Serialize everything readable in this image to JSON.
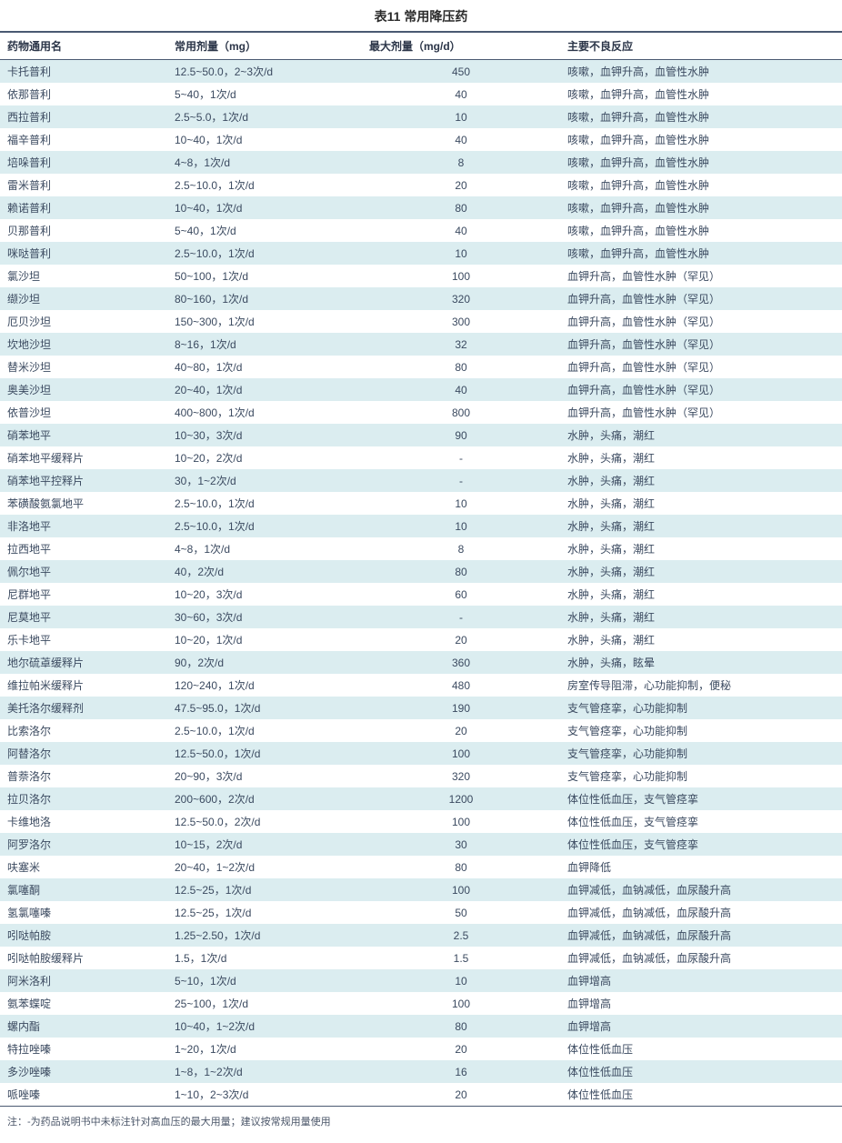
{
  "title": "表11  常用降压药",
  "columns": [
    "药物通用名",
    "常用剂量（mg）",
    "最大剂量（mg/d）",
    "主要不良反应"
  ],
  "rows": [
    [
      "卡托普利",
      "12.5~50.0，2~3次/d",
      "450",
      "咳嗽，血钾升高，血管性水肿"
    ],
    [
      "依那普利",
      "5~40，1次/d",
      "40",
      "咳嗽，血钾升高，血管性水肿"
    ],
    [
      "西拉普利",
      "2.5~5.0，1次/d",
      "10",
      "咳嗽，血钾升高，血管性水肿"
    ],
    [
      "福辛普利",
      "10~40，1次/d",
      "40",
      "咳嗽，血钾升高，血管性水肿"
    ],
    [
      "培哚普利",
      "4~8，1次/d",
      "8",
      "咳嗽，血钾升高，血管性水肿"
    ],
    [
      "雷米普利",
      "2.5~10.0，1次/d",
      "20",
      "咳嗽，血钾升高，血管性水肿"
    ],
    [
      "赖诺普利",
      "10~40，1次/d",
      "80",
      "咳嗽，血钾升高，血管性水肿"
    ],
    [
      "贝那普利",
      "5~40，1次/d",
      "40",
      "咳嗽，血钾升高，血管性水肿"
    ],
    [
      "咪哒普利",
      "2.5~10.0，1次/d",
      "10",
      "咳嗽，血钾升高，血管性水肿"
    ],
    [
      "氯沙坦",
      "50~100，1次/d",
      "100",
      "血钾升高，血管性水肿（罕见）"
    ],
    [
      "缬沙坦",
      "80~160，1次/d",
      "320",
      "血钾升高，血管性水肿（罕见）"
    ],
    [
      "厄贝沙坦",
      "150~300，1次/d",
      "300",
      "血钾升高，血管性水肿（罕见）"
    ],
    [
      "坎地沙坦",
      "8~16，1次/d",
      "32",
      "血钾升高，血管性水肿（罕见）"
    ],
    [
      "替米沙坦",
      "40~80，1次/d",
      "80",
      "血钾升高，血管性水肿（罕见）"
    ],
    [
      "奥美沙坦",
      "20~40，1次/d",
      "40",
      "血钾升高，血管性水肿（罕见）"
    ],
    [
      "依普沙坦",
      "400~800，1次/d",
      "800",
      "血钾升高，血管性水肿（罕见）"
    ],
    [
      "硝苯地平",
      "10~30，3次/d",
      "90",
      "水肿，头痛，潮红"
    ],
    [
      "硝苯地平缓释片",
      "10~20，2次/d",
      "-",
      "水肿，头痛，潮红"
    ],
    [
      "硝苯地平控释片",
      "30，1~2次/d",
      "-",
      "水肿，头痛，潮红"
    ],
    [
      "苯磺酸氨氯地平",
      "2.5~10.0，1次/d",
      "10",
      "水肿，头痛，潮红"
    ],
    [
      "非洛地平",
      "2.5~10.0，1次/d",
      "10",
      "水肿，头痛，潮红"
    ],
    [
      "拉西地平",
      "4~8，1次/d",
      "8",
      "水肿，头痛，潮红"
    ],
    [
      "佩尔地平",
      "40，2次/d",
      "80",
      "水肿，头痛，潮红"
    ],
    [
      "尼群地平",
      "10~20，3次/d",
      "60",
      "水肿，头痛，潮红"
    ],
    [
      "尼莫地平",
      "30~60，3次/d",
      "-",
      "水肿，头痛，潮红"
    ],
    [
      "乐卡地平",
      "10~20，1次/d",
      "20",
      "水肿，头痛，潮红"
    ],
    [
      "地尔硫䓬缓释片",
      "90，2次/d",
      "360",
      "水肿，头痛，眩晕"
    ],
    [
      "维拉帕米缓释片",
      "120~240，1次/d",
      "480",
      "房室传导阻滞，心功能抑制，便秘"
    ],
    [
      "美托洛尔缓释剂",
      "47.5~95.0，1次/d",
      "190",
      "支气管痉挛，心功能抑制"
    ],
    [
      "比索洛尔",
      "2.5~10.0，1次/d",
      "20",
      "支气管痉挛，心功能抑制"
    ],
    [
      "阿替洛尔",
      "12.5~50.0，1次/d",
      "100",
      "支气管痉挛，心功能抑制"
    ],
    [
      "普萘洛尔",
      "20~90，3次/d",
      "320",
      "支气管痉挛，心功能抑制"
    ],
    [
      "拉贝洛尔",
      "200~600，2次/d",
      "1200",
      "体位性低血压，支气管痉挛"
    ],
    [
      "卡维地洛",
      "12.5~50.0，2次/d",
      "100",
      "体位性低血压，支气管痉挛"
    ],
    [
      "阿罗洛尔",
      "10~15，2次/d",
      "30",
      "体位性低血压，支气管痉挛"
    ],
    [
      "呋塞米",
      "20~40，1~2次/d",
      "80",
      "血钾降低"
    ],
    [
      "氯噻酮",
      "12.5~25，1次/d",
      "100",
      "血钾减低，血钠减低，血尿酸升高"
    ],
    [
      "氢氯噻嗪",
      "12.5~25，1次/d",
      "50",
      "血钾减低，血钠减低，血尿酸升高"
    ],
    [
      "吲哒帕胺",
      "1.25~2.50，1次/d",
      "2.5",
      "血钾减低，血钠减低，血尿酸升高"
    ],
    [
      "吲哒帕胺缓释片",
      "1.5，1次/d",
      "1.5",
      "血钾减低，血钠减低，血尿酸升高"
    ],
    [
      "阿米洛利",
      "5~10，1次/d",
      "10",
      "血钾增高"
    ],
    [
      "氨苯蝶啶",
      "25~100，1次/d",
      "100",
      "血钾增高"
    ],
    [
      "螺内酯",
      "10~40，1~2次/d",
      "80",
      "血钾增高"
    ],
    [
      "特拉唑嗪",
      "1~20，1次/d",
      "20",
      "体位性低血压"
    ],
    [
      "多沙唑嗪",
      "1~8，1~2次/d",
      "16",
      "体位性低血压"
    ],
    [
      "哌唑嗪",
      "1~10，2~3次/d",
      "20",
      "体位性低血压"
    ]
  ],
  "footnote": "注：-为药品说明书中未标注针对高血压的最大用量；建议按常规用量使用",
  "colors": {
    "stripe": "#dbedf0",
    "border": "#4a5a72",
    "text": "#3b4a60"
  }
}
